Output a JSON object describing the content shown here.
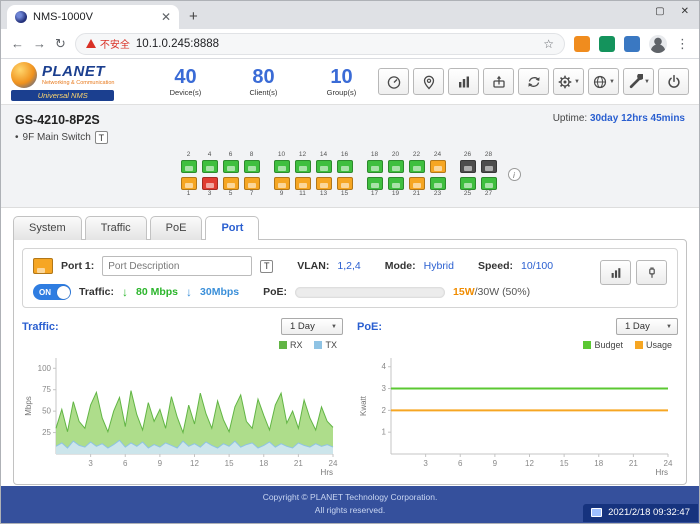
{
  "browser": {
    "tab_title": "NMS-1000V",
    "url": "10.1.0.245:8888",
    "security_warning": "不安全",
    "icon_names": [
      "back",
      "forward",
      "refresh",
      "star",
      "rss-extension",
      "extension-green",
      "extension-blue",
      "profile",
      "menu"
    ]
  },
  "header": {
    "brand": "PLANET",
    "brand_tagline": "Networking & Communication",
    "brand_product": "Universal NMS",
    "stats": [
      {
        "value": "40",
        "label": "Device(s)"
      },
      {
        "value": "80",
        "label": "Client(s)"
      },
      {
        "value": "10",
        "label": "Group(s)"
      }
    ],
    "toolbar_icons": [
      "dashboard",
      "location",
      "statistics",
      "provision",
      "refresh",
      "settings",
      "network",
      "tools",
      "power"
    ]
  },
  "device": {
    "name": "GS-4210-8P2S",
    "location": "9F Main Switch",
    "text_button": "T",
    "uptime_label": "Uptime:",
    "uptime_value": "30day 12hrs 45mins",
    "ports": {
      "status_colors": {
        "up": "#3fbf3f",
        "poe": "#f6a623",
        "alert": "#e03c31",
        "sfp": "#4d4d4d"
      },
      "rows": [
        {
          "position": "top",
          "groups": [
            [
              {
                "n": "2",
                "s": "up"
              },
              {
                "n": "4",
                "s": "up"
              },
              {
                "n": "6",
                "s": "up"
              },
              {
                "n": "8",
                "s": "up"
              }
            ],
            [
              {
                "n": "10",
                "s": "up"
              },
              {
                "n": "12",
                "s": "up"
              },
              {
                "n": "14",
                "s": "up"
              },
              {
                "n": "16",
                "s": "up"
              }
            ],
            [
              {
                "n": "18",
                "s": "up"
              },
              {
                "n": "20",
                "s": "up"
              },
              {
                "n": "22",
                "s": "up"
              },
              {
                "n": "24",
                "s": "poe"
              }
            ],
            [
              {
                "n": "26",
                "s": "sfp"
              },
              {
                "n": "28",
                "s": "sfp"
              }
            ]
          ]
        },
        {
          "position": "bottom",
          "groups": [
            [
              {
                "n": "1",
                "s": "poe"
              },
              {
                "n": "3",
                "s": "alert"
              },
              {
                "n": "5",
                "s": "poe"
              },
              {
                "n": "7",
                "s": "poe"
              }
            ],
            [
              {
                "n": "9",
                "s": "poe"
              },
              {
                "n": "11",
                "s": "poe"
              },
              {
                "n": "13",
                "s": "poe"
              },
              {
                "n": "15",
                "s": "poe"
              }
            ],
            [
              {
                "n": "17",
                "s": "up"
              },
              {
                "n": "19",
                "s": "up"
              },
              {
                "n": "21",
                "s": "poe"
              },
              {
                "n": "23",
                "s": "up"
              }
            ],
            [
              {
                "n": "25",
                "s": "up"
              },
              {
                "n": "27",
                "s": "up"
              }
            ]
          ]
        }
      ]
    }
  },
  "tabs": [
    {
      "label": "System"
    },
    {
      "label": "Traffic"
    },
    {
      "label": "PoE"
    },
    {
      "label": "Port"
    }
  ],
  "port_panel": {
    "port_label": "Port 1:",
    "description_value": "Port Description",
    "text_button": "T",
    "vlan_label": "VLAN:",
    "vlan_value": "1,2,4",
    "mode_label": "Mode:",
    "mode_value": "Hybrid",
    "speed_label": "Speed:",
    "speed_value": "10/100",
    "power_toggle": "ON",
    "traffic_label": "Traffic:",
    "rx_rate": "80 Mbps",
    "tx_rate": "30Mbps",
    "poe_label": "PoE:",
    "poe_used": "15W",
    "poe_detail": "/30W (50%)",
    "poe_percent": 50
  },
  "chart_data": [
    {
      "type": "area",
      "title": "Traffic:",
      "range_selector": "1 Day",
      "ylabel": "Mbps",
      "xlabel": "Hrs",
      "xlim": [
        0,
        24
      ],
      "ylim": [
        0,
        112
      ],
      "xticks": [
        3,
        6,
        9,
        12,
        15,
        18,
        21,
        24
      ],
      "yticks": [
        25,
        50,
        75,
        100
      ],
      "legend_position": "top-right",
      "series": [
        {
          "name": "RX",
          "color": "#62b545",
          "fill": "#a5d97e",
          "values": [
            30,
            52,
            26,
            61,
            38,
            30,
            57,
            72,
            42,
            26,
            50,
            66,
            32,
            74,
            46,
            28,
            60,
            38,
            52,
            30,
            67,
            43,
            25,
            57,
            35,
            71,
            47,
            30,
            62,
            40,
            26,
            55,
            69,
            38,
            30,
            64,
            45,
            28,
            57,
            71,
            36,
            50,
            30,
            63,
            42,
            28,
            55,
            38,
            31
          ]
        },
        {
          "name": "TX",
          "color": "#8fc3e4",
          "fill": "#cfe6f5",
          "values": [
            9,
            13,
            7,
            15,
            10,
            8,
            14,
            9,
            12,
            7,
            11,
            16,
            8,
            13,
            9,
            14,
            7,
            11,
            8,
            13,
            10,
            7,
            15,
            9,
            12,
            8,
            14,
            10,
            7,
            12,
            9,
            15,
            8,
            11,
            13,
            7,
            10,
            14,
            8,
            12,
            9,
            7,
            13,
            10,
            8,
            12,
            9,
            11,
            8
          ]
        }
      ]
    },
    {
      "type": "line",
      "title": "PoE:",
      "range_selector": "1 Day",
      "ylabel": "Kwatt",
      "xlabel": "Hrs",
      "xlim": [
        0,
        24
      ],
      "ylim": [
        0,
        4.4
      ],
      "xticks": [
        3,
        6,
        9,
        12,
        15,
        18,
        21,
        24
      ],
      "yticks": [
        1,
        2,
        3,
        4
      ],
      "legend_position": "top-right",
      "series": [
        {
          "name": "Budget",
          "color": "#5bc832",
          "fill": "none",
          "values": [
            3,
            3
          ]
        },
        {
          "name": "Usage",
          "color": "#f6a623",
          "fill": "none",
          "values": [
            2,
            2
          ]
        }
      ]
    }
  ],
  "footer": {
    "copyright_line1": "Copyright © PLANET Technology Corporation.",
    "copyright_line2": "All rights reserved.",
    "timestamp": "2021/2/18 09:32:47"
  }
}
